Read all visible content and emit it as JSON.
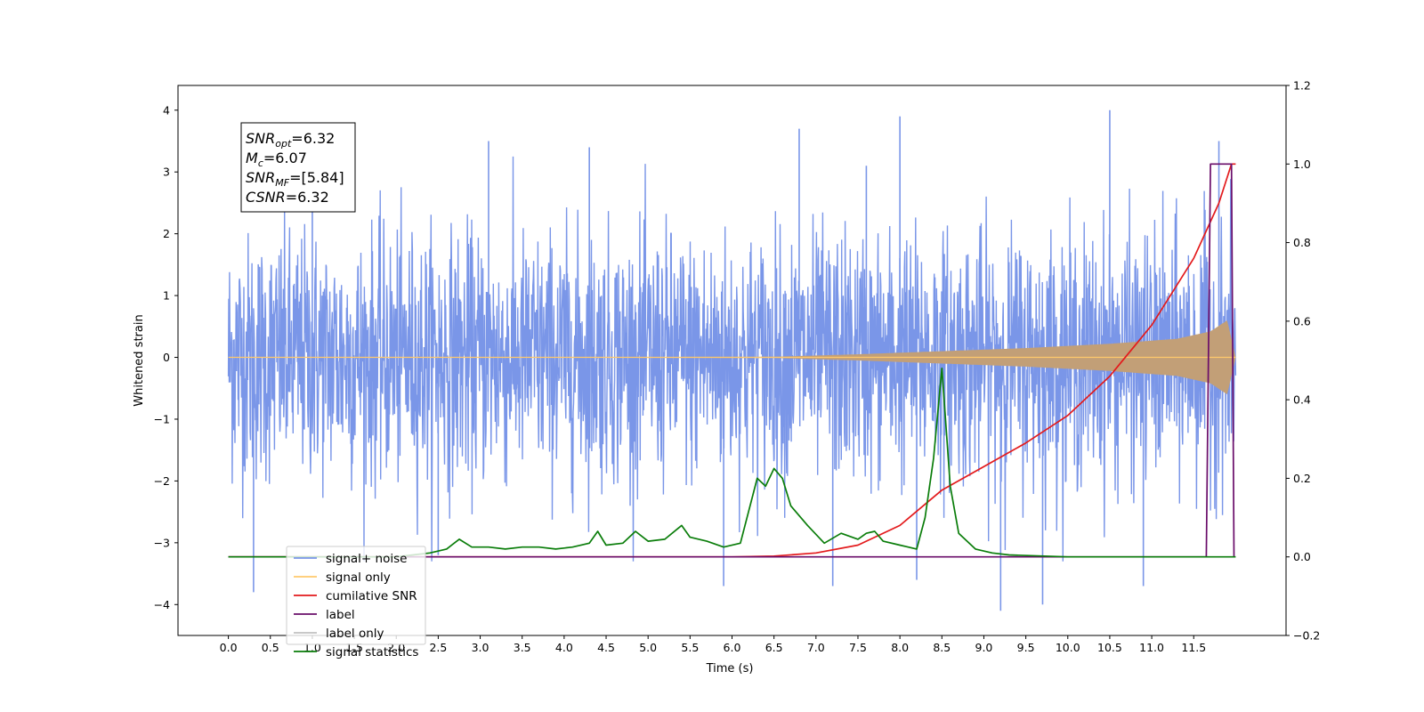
{
  "chart_data": {
    "type": "line",
    "xlabel": "Time (s)",
    "ylabel_left": "Whitened strain",
    "xlim": [
      -0.6,
      12.6
    ],
    "ylim_left": [
      -4.5,
      4.4
    ],
    "ylim_right": [
      -0.2,
      1.2
    ],
    "x_ticks": [
      0.0,
      0.5,
      1.0,
      1.5,
      2.0,
      2.5,
      3.0,
      3.5,
      4.0,
      4.5,
      5.0,
      5.5,
      6.0,
      6.5,
      7.0,
      7.5,
      8.0,
      8.5,
      9.0,
      9.5,
      10.0,
      10.5,
      11.0,
      11.5
    ],
    "y_ticks_left": [
      4,
      3,
      2,
      1,
      0,
      -1,
      -2,
      -3,
      -4
    ],
    "y_ticks_right": [
      1.2,
      1.0,
      0.8,
      0.6,
      0.4,
      0.2,
      0.0,
      -0.2
    ],
    "legend_position": "lower-left",
    "legend": [
      {
        "label": "signal+ noise",
        "color": "#7a96e8"
      },
      {
        "label": "signal only",
        "color": "#ffc96b"
      },
      {
        "label": "cumilative SNR",
        "color": "#e31a1c"
      },
      {
        "label": "label",
        "color": "#6a0d6a"
      },
      {
        "label": "label only",
        "color": "#c0c0c0"
      },
      {
        "label": "signal statistics",
        "color": "#0a7d0a"
      }
    ],
    "annotation": {
      "lines": [
        {
          "sym": "SNR",
          "sub": "opt",
          "value": "=6.32"
        },
        {
          "sym": "M",
          "sub": "c",
          "value": "=6.07"
        },
        {
          "sym": "SNR",
          "sub": "MF",
          "value": "=[5.84]"
        },
        {
          "sym": "CSNR",
          "sub": "",
          "value": "=6.32"
        }
      ]
    },
    "series": [
      {
        "name": "signal+ noise",
        "axis": "left",
        "color": "#7a96e8",
        "style": "noise",
        "x_range": [
          0.0,
          12.0
        ],
        "amplitude": 1.6,
        "peaks": [
          [
            0.3,
            -3.8
          ],
          [
            1.0,
            2.7
          ],
          [
            2.5,
            -3.2
          ],
          [
            3.1,
            3.5
          ],
          [
            4.3,
            3.4
          ],
          [
            5.9,
            -3.7
          ],
          [
            6.8,
            3.7
          ],
          [
            7.2,
            -3.7
          ],
          [
            7.6,
            3.1
          ],
          [
            8.0,
            3.9
          ],
          [
            8.2,
            -3.6
          ],
          [
            9.2,
            -4.1
          ],
          [
            9.7,
            -4.0
          ],
          [
            10.5,
            4.0
          ],
          [
            10.9,
            -3.7
          ],
          [
            11.8,
            3.5
          ]
        ]
      },
      {
        "name": "signal only",
        "axis": "left",
        "color": "#ffc96b",
        "style": "envelope",
        "envelope": [
          [
            0.0,
            0.0
          ],
          [
            6.5,
            0.01
          ],
          [
            7.5,
            0.05
          ],
          [
            8.5,
            0.1
          ],
          [
            9.5,
            0.15
          ],
          [
            10.5,
            0.22
          ],
          [
            11.3,
            0.3
          ],
          [
            11.7,
            0.42
          ],
          [
            11.9,
            0.6
          ],
          [
            12.0,
            0.0
          ]
        ]
      },
      {
        "name": "cumilative SNR",
        "axis": "right",
        "color": "#e31a1c",
        "style": "line",
        "points": [
          [
            0.0,
            0.0
          ],
          [
            6.0,
            0.0
          ],
          [
            6.5,
            0.002
          ],
          [
            7.0,
            0.01
          ],
          [
            7.5,
            0.03
          ],
          [
            8.0,
            0.08
          ],
          [
            8.5,
            0.17
          ],
          [
            9.0,
            0.23
          ],
          [
            9.5,
            0.29
          ],
          [
            10.0,
            0.36
          ],
          [
            10.5,
            0.46
          ],
          [
            11.0,
            0.59
          ],
          [
            11.5,
            0.76
          ],
          [
            11.8,
            0.9
          ],
          [
            11.95,
            1.0
          ],
          [
            12.0,
            1.0
          ]
        ]
      },
      {
        "name": "label",
        "axis": "right",
        "color": "#6a0d6a",
        "style": "line",
        "points": [
          [
            0.0,
            0.0
          ],
          [
            11.65,
            0.0
          ],
          [
            11.7,
            1.0
          ],
          [
            11.95,
            1.0
          ],
          [
            11.98,
            0.0
          ]
        ]
      },
      {
        "name": "signal statistics",
        "axis": "right",
        "color": "#0a7d0a",
        "style": "line",
        "points": [
          [
            0.0,
            0.0
          ],
          [
            2.0,
            0.0
          ],
          [
            2.2,
            0.005
          ],
          [
            2.4,
            0.01
          ],
          [
            2.6,
            0.02
          ],
          [
            2.75,
            0.045
          ],
          [
            2.9,
            0.025
          ],
          [
            3.1,
            0.025
          ],
          [
            3.3,
            0.02
          ],
          [
            3.5,
            0.025
          ],
          [
            3.7,
            0.025
          ],
          [
            3.9,
            0.02
          ],
          [
            4.1,
            0.025
          ],
          [
            4.3,
            0.035
          ],
          [
            4.4,
            0.065
          ],
          [
            4.5,
            0.03
          ],
          [
            4.7,
            0.035
          ],
          [
            4.85,
            0.065
          ],
          [
            5.0,
            0.04
          ],
          [
            5.2,
            0.045
          ],
          [
            5.4,
            0.08
          ],
          [
            5.5,
            0.05
          ],
          [
            5.7,
            0.04
          ],
          [
            5.9,
            0.025
          ],
          [
            6.1,
            0.035
          ],
          [
            6.3,
            0.2
          ],
          [
            6.4,
            0.18
          ],
          [
            6.5,
            0.225
          ],
          [
            6.6,
            0.2
          ],
          [
            6.7,
            0.13
          ],
          [
            6.9,
            0.08
          ],
          [
            7.1,
            0.035
          ],
          [
            7.3,
            0.06
          ],
          [
            7.5,
            0.045
          ],
          [
            7.6,
            0.06
          ],
          [
            7.7,
            0.065
          ],
          [
            7.8,
            0.04
          ],
          [
            8.0,
            0.03
          ],
          [
            8.2,
            0.02
          ],
          [
            8.3,
            0.1
          ],
          [
            8.4,
            0.25
          ],
          [
            8.5,
            0.48
          ],
          [
            8.6,
            0.18
          ],
          [
            8.7,
            0.06
          ],
          [
            8.9,
            0.02
          ],
          [
            9.1,
            0.01
          ],
          [
            9.3,
            0.005
          ],
          [
            10.0,
            0.0
          ],
          [
            12.0,
            0.0
          ]
        ]
      }
    ]
  }
}
